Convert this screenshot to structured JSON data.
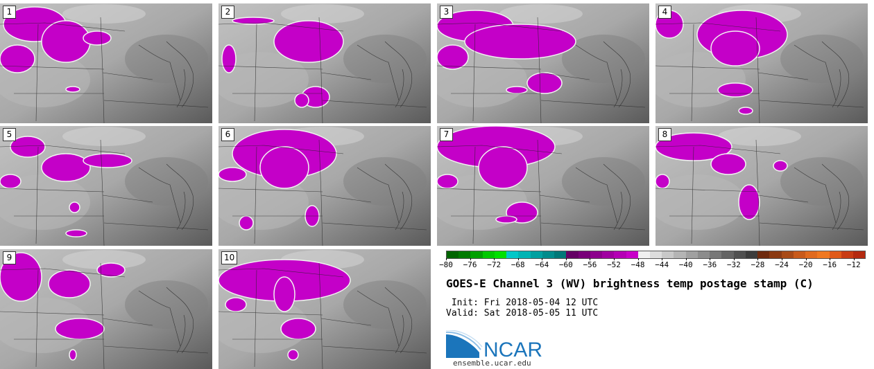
{
  "panels": [
    {
      "label": "1"
    },
    {
      "label": "2"
    },
    {
      "label": "3"
    },
    {
      "label": "4"
    },
    {
      "label": "5"
    },
    {
      "label": "6"
    },
    {
      "label": "7"
    },
    {
      "label": "8"
    },
    {
      "label": "9"
    },
    {
      "label": "10"
    }
  ],
  "colorbar": {
    "ticks": [
      "−80",
      "−76",
      "−72",
      "−68",
      "−64",
      "−60",
      "−56",
      "−52",
      "−48",
      "−44",
      "−40",
      "−36",
      "−32",
      "−28",
      "−24",
      "−20",
      "−16",
      "−12"
    ],
    "range": [
      -80,
      -10
    ],
    "colors": [
      "#006400",
      "#007a00",
      "#00a000",
      "#00c800",
      "#00e000",
      "#00c8c8",
      "#00b4b4",
      "#00a0a0",
      "#008c8c",
      "#007878",
      "#640064",
      "#780078",
      "#8c008c",
      "#a000a0",
      "#b400b4",
      "#c800c8",
      "#f0f0f0",
      "#dcdcdc",
      "#c8c8c8",
      "#b4b4b4",
      "#a0a0a0",
      "#8c8c8c",
      "#787878",
      "#646464",
      "#505050",
      "#3c3c3c",
      "#6e2a0e",
      "#8b3a12",
      "#a84a16",
      "#c85a1a",
      "#e06a1e",
      "#f07820",
      "#e05a1a",
      "#c83c14",
      "#b42a10"
    ]
  },
  "title": "GOES-E Channel 3 (WV) brightness temp postage stamp (C)",
  "init_text": " Init: Fri 2018-05-04 12 UTC",
  "valid_text": "Valid: Sat 2018-05-05 11 UTC",
  "logo": {
    "text": "NCAR",
    "color": "#1b75bb"
  },
  "site": "ensemble.ucar.edu"
}
